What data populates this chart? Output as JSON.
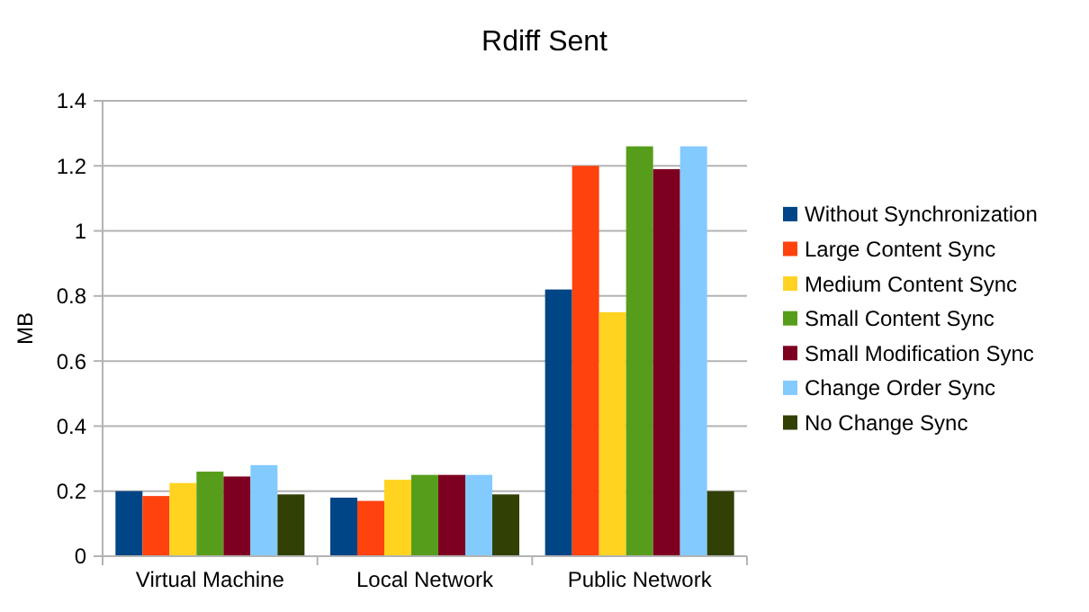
{
  "chart_data": {
    "type": "bar",
    "title": "Rdiff Sent",
    "ylabel": "MB",
    "categories": [
      "Virtual Machine",
      "Local Network",
      "Public Network"
    ],
    "series": [
      {
        "name": "Without Synchronization",
        "color": "#004586",
        "values": [
          0.2,
          0.18,
          0.82
        ]
      },
      {
        "name": "Large Content Sync",
        "color": "#ff420e",
        "values": [
          0.185,
          0.17,
          1.2
        ]
      },
      {
        "name": "Medium Content Sync",
        "color": "#ffd320",
        "values": [
          0.225,
          0.235,
          0.75
        ]
      },
      {
        "name": "Small Content Sync",
        "color": "#579d1c",
        "values": [
          0.26,
          0.25,
          1.26
        ]
      },
      {
        "name": "Small Modification Sync",
        "color": "#7e0021",
        "values": [
          0.245,
          0.25,
          1.19
        ]
      },
      {
        "name": "Change Order Sync",
        "color": "#83caff",
        "values": [
          0.28,
          0.25,
          1.26
        ]
      },
      {
        "name": "No Change Sync",
        "color": "#314004",
        "values": [
          0.19,
          0.19,
          0.2
        ]
      }
    ],
    "ylim": [
      0,
      1.4
    ],
    "yticks": [
      0,
      0.2,
      0.4,
      0.6,
      0.8,
      1,
      1.2,
      1.4
    ],
    "grid": "y",
    "legend": "right"
  }
}
